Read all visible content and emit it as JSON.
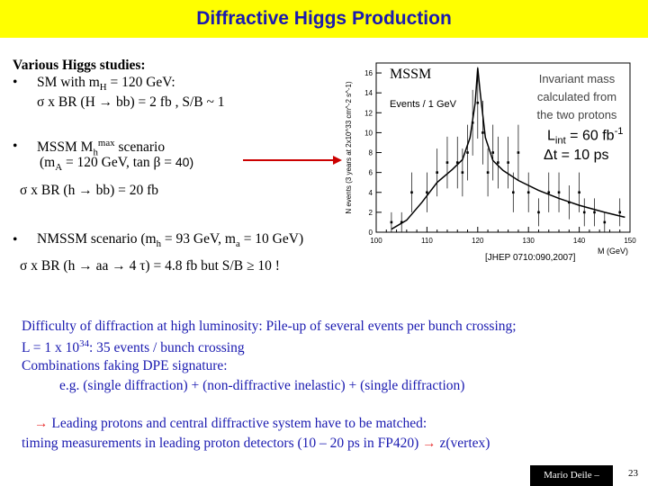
{
  "title": "Diffractive Higgs Production",
  "studies": {
    "heading": "Various Higgs studies:",
    "sm_line1": "SM with mH = 120 GeV:",
    "sm_line2": "σ x BR (H → bb) = 2 fb ,  S/B ~ 1",
    "mssm_line1": "MSSM Mhmax scenario",
    "mssm_line2": "(mA = 120 GeV, tan β = 40)",
    "mssm_line3": "σ x BR (h → bb) = 20 fb",
    "nmssm_line1": "NMSSM scenario (mh = 93 GeV, ma = 10 GeV)",
    "nmssm_line2": "σ x BR (h → aa → 4 τ) = 4.8 fb but S/B ≥ 10 !"
  },
  "bullet": "•",
  "plot_annotations": {
    "mssm": "MSSM",
    "events_label": "Events / 1 GeV",
    "invariant_mass": [
      "Invariant mass",
      "calculated from",
      "the two protons"
    ],
    "lumi": "Lint = 60 fb-1",
    "delta_t": "Δt = 10 ps",
    "reference": "[JHEP 0710:090,2007]"
  },
  "chart_data": {
    "type": "line",
    "title": "",
    "xlabel": "M (GeV)",
    "ylabel": "N events (3 years at 2x10^33 cm^-2 s^-1)",
    "xlim": [
      100,
      150
    ],
    "ylim": [
      0,
      17
    ],
    "x_ticks": [
      100,
      110,
      120,
      130,
      140,
      150
    ],
    "y_ticks": [
      0,
      2,
      4,
      6,
      8,
      10,
      12,
      14,
      16
    ],
    "series": [
      {
        "x": [
          103,
          106,
          109,
          112,
          115,
          117,
          118.5,
          119.5,
          120,
          120.5,
          121.5,
          123,
          125,
          128,
          132,
          136,
          140,
          145,
          149
        ],
        "values": [
          0.3,
          1.2,
          3.0,
          5.0,
          6.3,
          7.3,
          9.5,
          13.0,
          16.5,
          14.0,
          9.5,
          7.2,
          6.2,
          5.2,
          4.2,
          3.4,
          2.7,
          2.0,
          1.5
        ]
      }
    ],
    "points": {
      "x": [
        103,
        105,
        107,
        110,
        112,
        114,
        116,
        117,
        118,
        119,
        120,
        121,
        122,
        123,
        124,
        126,
        127,
        128,
        130,
        132,
        134,
        136,
        138,
        140,
        141,
        143,
        145,
        148
      ],
      "values": [
        1,
        1,
        4,
        4,
        6,
        7,
        7,
        6,
        8,
        11,
        13,
        10,
        6,
        8,
        7,
        7,
        4,
        8,
        4,
        2,
        4,
        4,
        3,
        4,
        2,
        2,
        1,
        2
      ],
      "errors": [
        1,
        1,
        2,
        2,
        2.4,
        2.6,
        2.6,
        2.4,
        2.8,
        3.3,
        3.6,
        3.2,
        2.4,
        2.8,
        2.6,
        2.6,
        2,
        2.8,
        2,
        1.4,
        2,
        2,
        1.7,
        2,
        1.4,
        1.4,
        1,
        1.4
      ]
    }
  },
  "body": {
    "line1": "Difficulty of diffraction at high luminosity: Pile-up of several events per bunch crossing;",
    "line2": "L = 1 x 1034: 35 events / bunch crossing",
    "line3": "Combinations faking DPE signature:",
    "line4": "e.g.  (single diffraction) + (non-diffractive inelastic) + (single diffraction)",
    "arrow1": "→",
    "line5": "Leading protons and central diffractive system have to be matched:",
    "line6": "timing measurements in leading proton detectors (10 – 20 ps in FP420)",
    "arrow2": "→",
    "line6b": "z(vertex)"
  },
  "footer": {
    "author": "Mario Deile  –",
    "page": "23"
  },
  "colors": {
    "title_bg": "#ffff00",
    "title_text": "#1a1ab0",
    "arrow": "#e83030",
    "mssm_box_arrow": "#cc0000"
  }
}
